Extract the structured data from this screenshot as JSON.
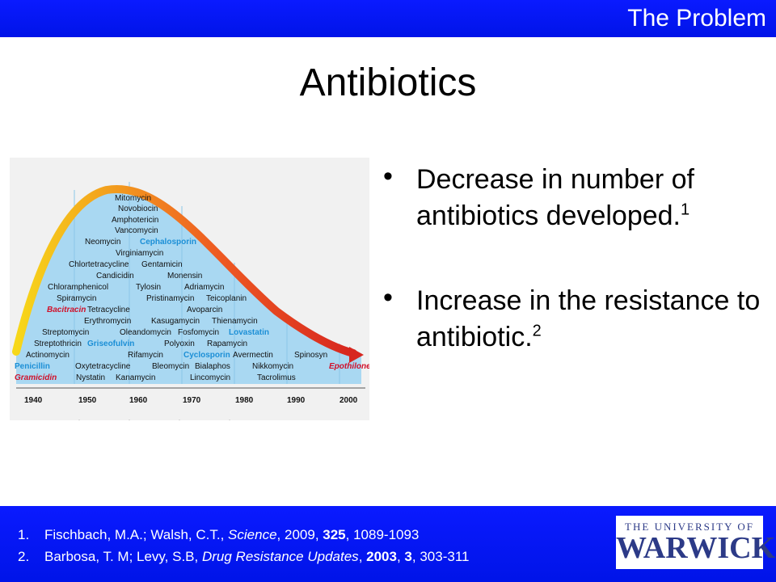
{
  "header": {
    "section_label": "The Problem"
  },
  "slide": {
    "title": "Antibiotics"
  },
  "figure": {
    "years": [
      "1940",
      "1950",
      "1960",
      "1970",
      "1980",
      "1990",
      "2000"
    ],
    "antibiotics": [
      {
        "name": "Mitomycin",
        "color": "#111"
      },
      {
        "name": "Novobiocin",
        "color": "#111"
      },
      {
        "name": "Amphotericin",
        "color": "#111"
      },
      {
        "name": "Vancomycin",
        "color": "#111"
      },
      {
        "name": "Neomycin",
        "color": "#111"
      },
      {
        "name": "Cephalosporin",
        "color": "#1c8fd6"
      },
      {
        "name": "Virginiamycin",
        "color": "#111"
      },
      {
        "name": "Chlortetracycline",
        "color": "#111"
      },
      {
        "name": "Gentamicin",
        "color": "#111"
      },
      {
        "name": "Candicidin",
        "color": "#111"
      },
      {
        "name": "Monensin",
        "color": "#111"
      },
      {
        "name": "Chloramphenicol",
        "color": "#111"
      },
      {
        "name": "Tylosin",
        "color": "#111"
      },
      {
        "name": "Adriamycin",
        "color": "#111"
      },
      {
        "name": "Spiramycin",
        "color": "#111"
      },
      {
        "name": "Pristinamycin",
        "color": "#111"
      },
      {
        "name": "Teicoplanin",
        "color": "#111"
      },
      {
        "name": "Bacitracin",
        "color": "#d0102a"
      },
      {
        "name": "Tetracycline",
        "color": "#111"
      },
      {
        "name": "Avoparcin",
        "color": "#111"
      },
      {
        "name": "Erythromycin",
        "color": "#111"
      },
      {
        "name": "Kasugamycin",
        "color": "#111"
      },
      {
        "name": "Thienamycin",
        "color": "#111"
      },
      {
        "name": "Streptomycin",
        "color": "#111"
      },
      {
        "name": "Oleandomycin",
        "color": "#111"
      },
      {
        "name": "Fosfomycin",
        "color": "#111"
      },
      {
        "name": "Lovastatin",
        "color": "#1c8fd6"
      },
      {
        "name": "Streptothricin",
        "color": "#111"
      },
      {
        "name": "Griseofulvin",
        "color": "#1c8fd6"
      },
      {
        "name": "Polyoxin",
        "color": "#111"
      },
      {
        "name": "Rapamycin",
        "color": "#111"
      },
      {
        "name": "Actinomycin",
        "color": "#111"
      },
      {
        "name": "Rifamycin",
        "color": "#111"
      },
      {
        "name": "Cyclosporin",
        "color": "#1c8fd6"
      },
      {
        "name": "Avermectin",
        "color": "#111"
      },
      {
        "name": "Spinosyn",
        "color": "#111"
      },
      {
        "name": "Penicillin",
        "color": "#1c8fd6"
      },
      {
        "name": "Oxytetracycline",
        "color": "#111"
      },
      {
        "name": "Bleomycin",
        "color": "#111"
      },
      {
        "name": "Bialaphos",
        "color": "#111"
      },
      {
        "name": "Nikkomycin",
        "color": "#111"
      },
      {
        "name": "Epothilone",
        "color": "#d0102a"
      },
      {
        "name": "Gramicidin",
        "color": "#d0102a"
      },
      {
        "name": "Nystatin",
        "color": "#111"
      },
      {
        "name": "Kanamycin",
        "color": "#111"
      },
      {
        "name": "Lincomycin",
        "color": "#111"
      },
      {
        "name": "Tacrolimus",
        "color": "#111"
      }
    ]
  },
  "bullets": [
    {
      "text": "Decrease in number of antibiotics developed.",
      "sup": "1"
    },
    {
      "text": "Increase in the resistance to antibiotic.",
      "sup": "2"
    }
  ],
  "references": [
    {
      "num": "1.",
      "authors": "Fischbach, M.A.; Walsh, C.T.,",
      "journal": "Science",
      "year": "2009",
      "volume": "325",
      "pages": "1089-1093"
    },
    {
      "num": "2.",
      "authors": "Barbosa, T. M; Levy, S.B,",
      "journal": "Drug Resistance Updates",
      "year": "2003",
      "volume": "3",
      "pages": "303-311"
    }
  ],
  "logo": {
    "line1": "THE UNIVERSITY OF",
    "line2": "WARWICK"
  }
}
